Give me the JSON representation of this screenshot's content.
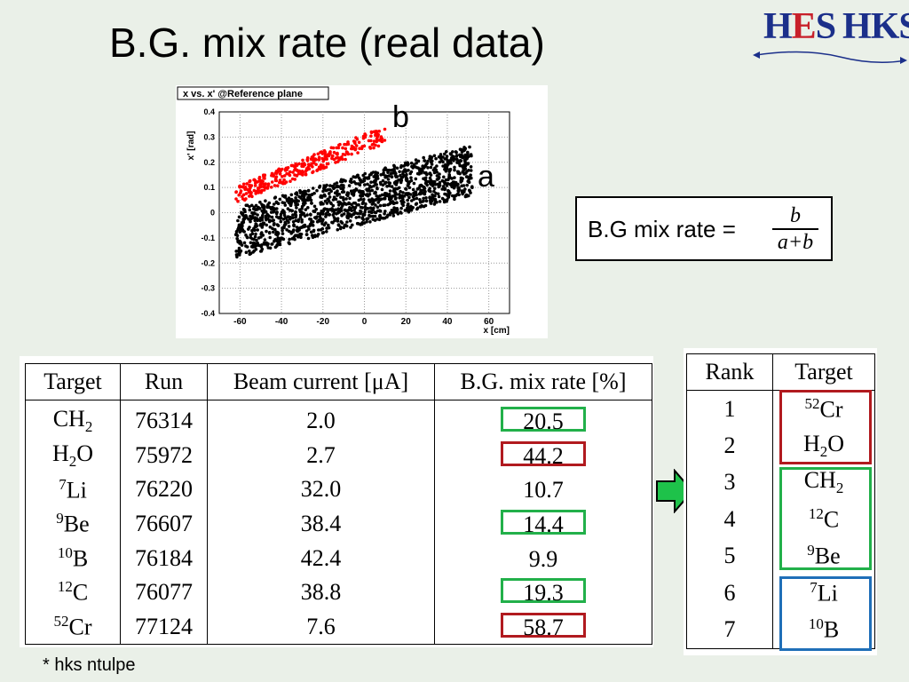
{
  "slide_title": "B.G. mix rate (real data)",
  "logo": {
    "part1_h": "H",
    "part1_e": "E",
    "part1_s": "S",
    "part2": "HKS"
  },
  "plot": {
    "title": "x vs. x' @Reference plane",
    "xlabel": "x [cm]",
    "ylabel": "x' [rad]",
    "xticks": [
      "-60",
      "-40",
      "-20",
      "0",
      "20",
      "40",
      "60"
    ],
    "yticks": [
      "0.4",
      "0.3",
      "0.2",
      "0.1",
      "0",
      "-0.1",
      "-0.2",
      "-0.3",
      "-0.4"
    ],
    "label_b": "b",
    "label_a": "a",
    "colors": {
      "a": "#000000",
      "b": "#ff0000"
    }
  },
  "formula": {
    "label": "B.G mix rate =",
    "numerator": "b",
    "denominator": "a+b"
  },
  "table1": {
    "headers": [
      "Target",
      "Run",
      "Beam current [μA]",
      "B.G. mix rate [%]"
    ],
    "rows": [
      {
        "target_base": "CH",
        "target_sub": "2",
        "target_sup": "",
        "target_tail": "",
        "run": "76314",
        "current": "2.0",
        "rate": "20.5",
        "highlight": "g"
      },
      {
        "target_base": "H",
        "target_sub": "2",
        "target_sup": "",
        "target_tail": "O",
        "run": "75972",
        "current": "2.7",
        "rate": "44.2",
        "highlight": "r"
      },
      {
        "target_base": "Li",
        "target_sub": "",
        "target_sup": "7",
        "target_tail": "",
        "run": "76220",
        "current": "32.0",
        "rate": "10.7",
        "highlight": ""
      },
      {
        "target_base": "Be",
        "target_sub": "",
        "target_sup": "9",
        "target_tail": "",
        "run": "76607",
        "current": "38.4",
        "rate": "14.4",
        "highlight": "g"
      },
      {
        "target_base": "B",
        "target_sub": "",
        "target_sup": "10",
        "target_tail": "",
        "run": "76184",
        "current": "42.4",
        "rate": "9.9",
        "highlight": ""
      },
      {
        "target_base": "C",
        "target_sub": "",
        "target_sup": "12",
        "target_tail": "",
        "run": "76077",
        "current": "38.8",
        "rate": "19.3",
        "highlight": "g"
      },
      {
        "target_base": "Cr",
        "target_sub": "",
        "target_sup": "52",
        "target_tail": "",
        "run": "77124",
        "current": "7.6",
        "rate": "58.7",
        "highlight": "r"
      }
    ]
  },
  "table2": {
    "headers": [
      "Rank",
      "Target"
    ],
    "rows": [
      {
        "rank": "1",
        "sup": "52",
        "base": "Cr",
        "sub": "",
        "tail": ""
      },
      {
        "rank": "2",
        "sup": "",
        "base": "H",
        "sub": "2",
        "tail": "O"
      },
      {
        "rank": "3",
        "sup": "",
        "base": "CH",
        "sub": "2",
        "tail": ""
      },
      {
        "rank": "4",
        "sup": "12",
        "base": "C",
        "sub": "",
        "tail": ""
      },
      {
        "rank": "5",
        "sup": "9",
        "base": "Be",
        "sub": "",
        "tail": ""
      },
      {
        "rank": "6",
        "sup": "7",
        "base": "Li",
        "sub": "",
        "tail": ""
      },
      {
        "rank": "7",
        "sup": "10",
        "base": "B",
        "sub": "",
        "tail": ""
      }
    ],
    "group_colors": {
      "red": "#b11a1f",
      "green": "#22b04a",
      "blue": "#1f6fb8"
    }
  },
  "footnote": "* hks ntulpe"
}
